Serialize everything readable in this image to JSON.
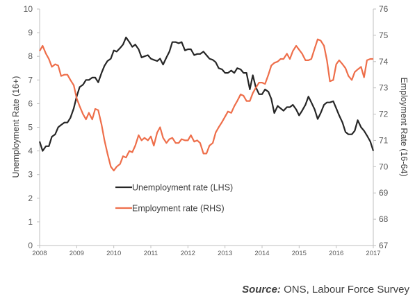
{
  "chart_data": {
    "type": "line",
    "x_ticks": [
      "2008",
      "2009",
      "2010",
      "2011",
      "2012",
      "2013",
      "2014",
      "2015",
      "2016",
      "2017"
    ],
    "x_range": [
      2008.0,
      2017.0
    ],
    "y_left": {
      "label": "Unemployment Rate (16+)",
      "range": [
        0,
        10
      ],
      "ticks": [
        "0",
        "1",
        "2",
        "3",
        "4",
        "5",
        "6",
        "7",
        "8",
        "9",
        "10"
      ]
    },
    "y_right": {
      "label": "Employment Rate (16-64)",
      "range": [
        67,
        76
      ],
      "ticks": [
        "67",
        "68",
        "69",
        "70",
        "71",
        "72",
        "73",
        "74",
        "75",
        "76"
      ]
    },
    "grid": false,
    "legend_position": "lower-left",
    "series": [
      {
        "name": "Unemployment rate (LHS)",
        "axis": "left",
        "color": "#262626",
        "points": [
          [
            2008.0,
            4.4
          ],
          [
            2008.08,
            4.0
          ],
          [
            2008.17,
            4.2
          ],
          [
            2008.25,
            4.2
          ],
          [
            2008.33,
            4.6
          ],
          [
            2008.42,
            4.7
          ],
          [
            2008.5,
            5.0
          ],
          [
            2008.58,
            5.1
          ],
          [
            2008.67,
            5.2
          ],
          [
            2008.75,
            5.2
          ],
          [
            2008.83,
            5.4
          ],
          [
            2008.92,
            5.8
          ],
          [
            2009.0,
            6.3
          ],
          [
            2009.08,
            6.7
          ],
          [
            2009.17,
            6.8
          ],
          [
            2009.25,
            7.0
          ],
          [
            2009.33,
            7.0
          ],
          [
            2009.42,
            7.1
          ],
          [
            2009.5,
            7.1
          ],
          [
            2009.58,
            6.9
          ],
          [
            2009.67,
            7.3
          ],
          [
            2009.75,
            7.6
          ],
          [
            2009.83,
            7.8
          ],
          [
            2009.92,
            7.9
          ],
          [
            2010.0,
            8.25
          ],
          [
            2010.08,
            8.2
          ],
          [
            2010.17,
            8.35
          ],
          [
            2010.25,
            8.5
          ],
          [
            2010.33,
            8.8
          ],
          [
            2010.42,
            8.6
          ],
          [
            2010.5,
            8.4
          ],
          [
            2010.58,
            8.5
          ],
          [
            2010.67,
            8.3
          ],
          [
            2010.75,
            7.95
          ],
          [
            2010.83,
            8.0
          ],
          [
            2010.92,
            8.05
          ],
          [
            2011.0,
            7.9
          ],
          [
            2011.08,
            7.85
          ],
          [
            2011.17,
            7.8
          ],
          [
            2011.25,
            7.9
          ],
          [
            2011.33,
            7.65
          ],
          [
            2011.42,
            7.95
          ],
          [
            2011.5,
            8.2
          ],
          [
            2011.58,
            8.6
          ],
          [
            2011.67,
            8.6
          ],
          [
            2011.75,
            8.55
          ],
          [
            2011.83,
            8.6
          ],
          [
            2011.92,
            8.25
          ],
          [
            2012.0,
            8.3
          ],
          [
            2012.08,
            8.3
          ],
          [
            2012.17,
            8.05
          ],
          [
            2012.25,
            8.1
          ],
          [
            2012.33,
            8.1
          ],
          [
            2012.42,
            8.2
          ],
          [
            2012.5,
            8.05
          ],
          [
            2012.58,
            7.9
          ],
          [
            2012.67,
            7.85
          ],
          [
            2012.75,
            7.75
          ],
          [
            2012.83,
            7.5
          ],
          [
            2012.92,
            7.45
          ],
          [
            2013.0,
            7.3
          ],
          [
            2013.08,
            7.3
          ],
          [
            2013.17,
            7.4
          ],
          [
            2013.25,
            7.3
          ],
          [
            2013.33,
            7.5
          ],
          [
            2013.42,
            7.45
          ],
          [
            2013.5,
            7.3
          ],
          [
            2013.58,
            7.3
          ],
          [
            2013.67,
            6.6
          ],
          [
            2013.75,
            7.2
          ],
          [
            2013.83,
            6.7
          ],
          [
            2013.92,
            6.4
          ],
          [
            2014.0,
            6.4
          ],
          [
            2014.08,
            6.6
          ],
          [
            2014.17,
            6.5
          ],
          [
            2014.25,
            6.2
          ],
          [
            2014.33,
            5.6
          ],
          [
            2014.42,
            5.9
          ],
          [
            2014.5,
            5.8
          ],
          [
            2014.58,
            5.7
          ],
          [
            2014.67,
            5.85
          ],
          [
            2014.75,
            5.85
          ],
          [
            2014.83,
            5.95
          ],
          [
            2014.92,
            5.75
          ],
          [
            2015.0,
            5.5
          ],
          [
            2015.08,
            5.7
          ],
          [
            2015.17,
            5.95
          ],
          [
            2015.25,
            6.3
          ],
          [
            2015.33,
            6.05
          ],
          [
            2015.42,
            5.75
          ],
          [
            2015.5,
            5.35
          ],
          [
            2015.58,
            5.6
          ],
          [
            2015.67,
            5.95
          ],
          [
            2015.75,
            6.05
          ],
          [
            2015.83,
            6.05
          ],
          [
            2015.92,
            6.1
          ],
          [
            2016.0,
            5.8
          ],
          [
            2016.08,
            5.5
          ],
          [
            2016.17,
            5.2
          ],
          [
            2016.25,
            4.8
          ],
          [
            2016.33,
            4.7
          ],
          [
            2016.42,
            4.7
          ],
          [
            2016.5,
            4.85
          ],
          [
            2016.58,
            5.3
          ],
          [
            2016.67,
            5.0
          ],
          [
            2016.75,
            4.85
          ],
          [
            2016.83,
            4.65
          ],
          [
            2016.92,
            4.4
          ],
          [
            2017.0,
            4.0
          ]
        ]
      },
      {
        "name": "Employment rate (RHS)",
        "axis": "right",
        "color": "#ee6e4a",
        "points": [
          [
            2008.0,
            74.4
          ],
          [
            2008.08,
            74.6
          ],
          [
            2008.17,
            74.3
          ],
          [
            2008.25,
            74.1
          ],
          [
            2008.33,
            73.8
          ],
          [
            2008.42,
            73.9
          ],
          [
            2008.5,
            73.85
          ],
          [
            2008.58,
            73.45
          ],
          [
            2008.67,
            73.5
          ],
          [
            2008.75,
            73.5
          ],
          [
            2008.83,
            73.3
          ],
          [
            2008.92,
            73.1
          ],
          [
            2009.0,
            72.6
          ],
          [
            2009.08,
            72.3
          ],
          [
            2009.17,
            72.0
          ],
          [
            2009.25,
            71.8
          ],
          [
            2009.33,
            72.05
          ],
          [
            2009.42,
            71.8
          ],
          [
            2009.5,
            72.2
          ],
          [
            2009.58,
            72.15
          ],
          [
            2009.67,
            71.6
          ],
          [
            2009.75,
            71.0
          ],
          [
            2009.83,
            70.5
          ],
          [
            2009.92,
            70.0
          ],
          [
            2010.0,
            69.85
          ],
          [
            2010.08,
            70.0
          ],
          [
            2010.17,
            70.1
          ],
          [
            2010.25,
            70.4
          ],
          [
            2010.33,
            70.35
          ],
          [
            2010.42,
            70.6
          ],
          [
            2010.5,
            70.55
          ],
          [
            2010.58,
            70.8
          ],
          [
            2010.67,
            71.2
          ],
          [
            2010.75,
            71.0
          ],
          [
            2010.83,
            71.1
          ],
          [
            2010.92,
            71.0
          ],
          [
            2011.0,
            71.15
          ],
          [
            2011.08,
            70.8
          ],
          [
            2011.17,
            71.3
          ],
          [
            2011.25,
            71.5
          ],
          [
            2011.33,
            71.1
          ],
          [
            2011.42,
            70.9
          ],
          [
            2011.5,
            71.05
          ],
          [
            2011.58,
            71.1
          ],
          [
            2011.67,
            70.9
          ],
          [
            2011.75,
            70.9
          ],
          [
            2011.83,
            71.05
          ],
          [
            2011.92,
            71.0
          ],
          [
            2012.0,
            71.0
          ],
          [
            2012.08,
            71.2
          ],
          [
            2012.17,
            70.95
          ],
          [
            2012.25,
            71.0
          ],
          [
            2012.33,
            70.9
          ],
          [
            2012.42,
            70.5
          ],
          [
            2012.5,
            70.5
          ],
          [
            2012.58,
            70.8
          ],
          [
            2012.67,
            70.9
          ],
          [
            2012.75,
            71.3
          ],
          [
            2012.83,
            71.5
          ],
          [
            2012.92,
            71.7
          ],
          [
            2013.0,
            71.9
          ],
          [
            2013.08,
            72.1
          ],
          [
            2013.17,
            72.05
          ],
          [
            2013.25,
            72.3
          ],
          [
            2013.33,
            72.5
          ],
          [
            2013.42,
            72.75
          ],
          [
            2013.5,
            72.7
          ],
          [
            2013.58,
            72.5
          ],
          [
            2013.67,
            72.5
          ],
          [
            2013.75,
            72.8
          ],
          [
            2013.83,
            73.0
          ],
          [
            2013.92,
            73.2
          ],
          [
            2014.0,
            73.2
          ],
          [
            2014.08,
            73.15
          ],
          [
            2014.17,
            73.5
          ],
          [
            2014.25,
            73.85
          ],
          [
            2014.33,
            73.95
          ],
          [
            2014.42,
            74.0
          ],
          [
            2014.5,
            74.1
          ],
          [
            2014.58,
            74.1
          ],
          [
            2014.67,
            74.3
          ],
          [
            2014.75,
            74.1
          ],
          [
            2014.83,
            74.4
          ],
          [
            2014.92,
            74.6
          ],
          [
            2015.0,
            74.45
          ],
          [
            2015.08,
            74.3
          ],
          [
            2015.17,
            74.05
          ],
          [
            2015.25,
            74.05
          ],
          [
            2015.33,
            74.1
          ],
          [
            2015.42,
            74.5
          ],
          [
            2015.5,
            74.85
          ],
          [
            2015.58,
            74.8
          ],
          [
            2015.67,
            74.6
          ],
          [
            2015.75,
            74.05
          ],
          [
            2015.83,
            73.25
          ],
          [
            2015.92,
            73.3
          ],
          [
            2016.0,
            73.9
          ],
          [
            2016.08,
            74.05
          ],
          [
            2016.17,
            73.9
          ],
          [
            2016.25,
            73.75
          ],
          [
            2016.33,
            73.45
          ],
          [
            2016.42,
            73.3
          ],
          [
            2016.5,
            73.6
          ],
          [
            2016.58,
            73.7
          ],
          [
            2016.67,
            73.8
          ],
          [
            2016.75,
            73.4
          ],
          [
            2016.83,
            74.05
          ],
          [
            2016.92,
            74.1
          ],
          [
            2017.0,
            74.1
          ]
        ]
      }
    ]
  },
  "source": {
    "label": "Source:",
    "text": " ONS, Labour Force Survey"
  }
}
